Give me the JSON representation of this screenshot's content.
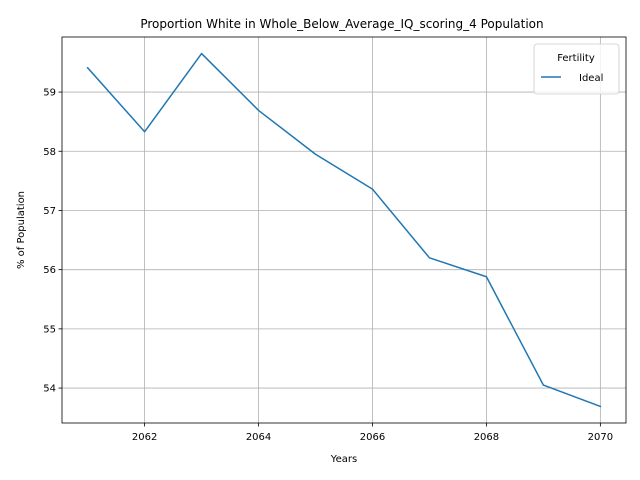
{
  "chart_data": {
    "type": "line",
    "title": "Proportion White in Whole_Below_Average_IQ_scoring_4 Population",
    "xlabel": "Years",
    "ylabel": "% of Population",
    "x": [
      2061,
      2062,
      2063,
      2064,
      2065,
      2066,
      2067,
      2068,
      2069,
      2070
    ],
    "series": [
      {
        "name": "Ideal",
        "color": "#1f77b4",
        "values": [
          59.41,
          58.33,
          59.65,
          58.69,
          57.95,
          57.36,
          56.2,
          55.88,
          54.05,
          53.69
        ]
      }
    ],
    "xlim": [
      2060.55,
      2070.45
    ],
    "ylim": [
      53.41,
      59.93
    ],
    "xticks": [
      2062,
      2064,
      2066,
      2068,
      2070
    ],
    "yticks": [
      54,
      55,
      56,
      57,
      58,
      59
    ],
    "grid": true,
    "legend": {
      "title": "Fertility",
      "placement": "top-right"
    }
  }
}
